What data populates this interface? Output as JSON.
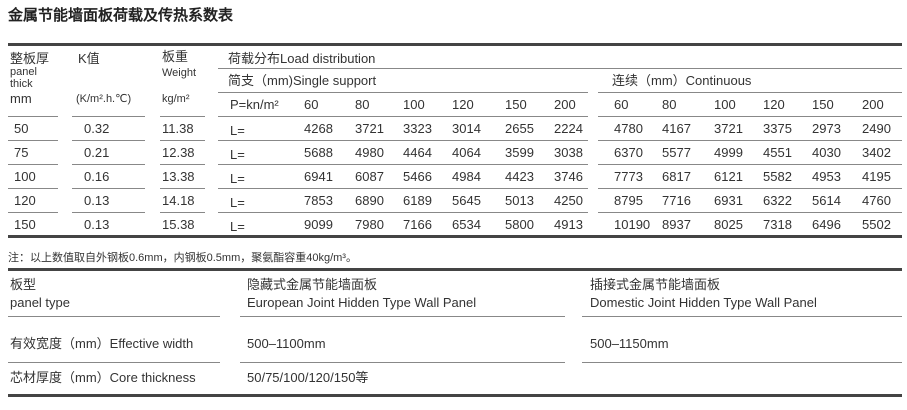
{
  "title": "金属节能墙面板荷载及传热系数表",
  "load_table": {
    "col_thick": {
      "cn": "整板厚",
      "en1": "panel",
      "en2": "thick",
      "unit": "mm"
    },
    "col_k": {
      "cn": "K值",
      "unit": "(K/m².h.℃)"
    },
    "col_weight": {
      "cn": "板重",
      "en": "Weight",
      "unit": "kg/m²"
    },
    "load_distribution": "荷载分布Load distribution",
    "single_support": "简支（mm)Single support",
    "continuous": "连续（mm）Continuous",
    "p_label": "P=kn/m²",
    "loads": [
      "60",
      "80",
      "100",
      "120",
      "150",
      "200"
    ],
    "rows": [
      {
        "thick": "50",
        "k": "0.32",
        "weight": "11.38",
        "l": "L=",
        "single": [
          "4268",
          "3721",
          "3323",
          "3014",
          "2655",
          "2224"
        ],
        "cont": [
          "4780",
          "4167",
          "3721",
          "3375",
          "2973",
          "2490"
        ]
      },
      {
        "thick": "75",
        "k": "0.21",
        "weight": "12.38",
        "l": "L=",
        "single": [
          "5688",
          "4980",
          "4464",
          "4064",
          "3599",
          "3038"
        ],
        "cont": [
          "6370",
          "5577",
          "4999",
          "4551",
          "4030",
          "3402"
        ]
      },
      {
        "thick": "100",
        "k": "0.16",
        "weight": "13.38",
        "l": "L=",
        "single": [
          "6941",
          "6087",
          "5466",
          "4984",
          "4423",
          "3746"
        ],
        "cont": [
          "7773",
          "6817",
          "6121",
          "5582",
          "4953",
          "4195"
        ]
      },
      {
        "thick": "120",
        "k": "0.13",
        "weight": "14.18",
        "l": "L=",
        "single": [
          "7853",
          "6890",
          "6189",
          "5645",
          "5013",
          "4250"
        ],
        "cont": [
          "8795",
          "7716",
          "6931",
          "6322",
          "5614",
          "4760"
        ]
      },
      {
        "thick": "150",
        "k": "0.13",
        "weight": "15.38",
        "l": "L=",
        "single": [
          "9099",
          "7980",
          "7166",
          "6534",
          "5800",
          "4913"
        ],
        "cont": [
          "10190",
          "8937",
          "8025",
          "7318",
          "6496",
          "5502"
        ]
      }
    ]
  },
  "note": "注：以上数值取自外钢板0.6mm，内钢板0.5mm，聚氨酯容重40kg/m³。",
  "panel_table": {
    "header": {
      "label_cn": "板型",
      "label_en": "panel type",
      "a_cn": "隐藏式金属节能墙面板",
      "a_en": "European Joint Hidden Type Wall Panel",
      "b_cn": "插接式金属节能墙面板",
      "b_en": "Domestic Joint Hidden Type Wall Panel"
    },
    "rows": [
      {
        "label": "有效宽度（mm）Effective width",
        "a": "500–1100mm",
        "b": "500–1150mm"
      },
      {
        "label": "芯材厚度（mm）Core thickness",
        "a": "50/75/100/120/150等",
        "b": ""
      }
    ]
  }
}
